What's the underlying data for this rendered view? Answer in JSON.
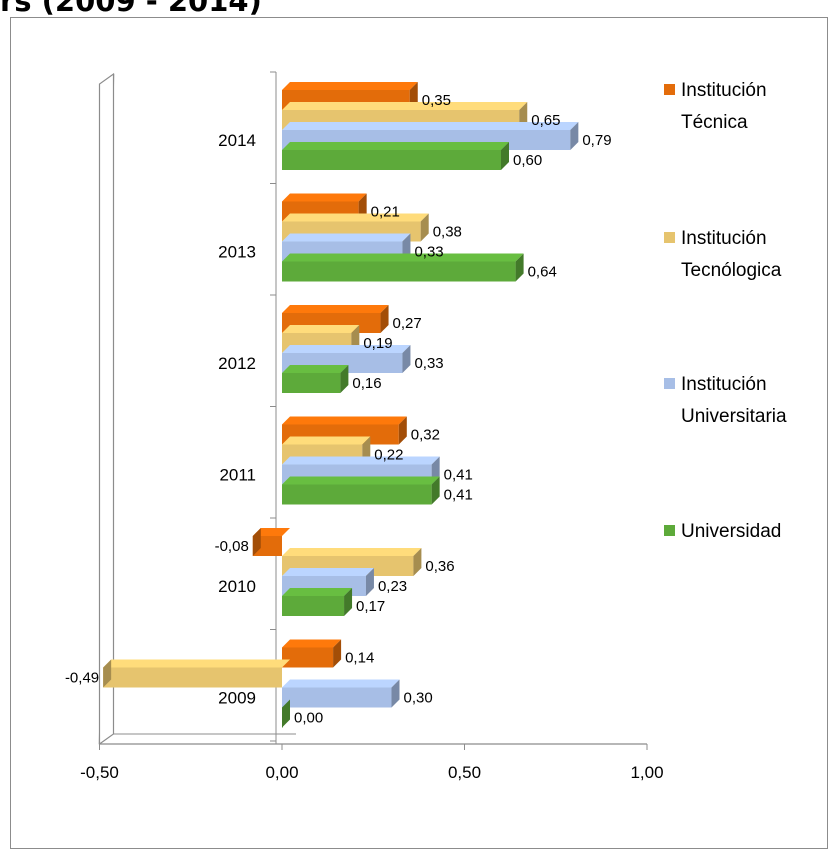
{
  "title_fragment": "rs (2009 - 2014)",
  "colors": {
    "institucion_tecnica": "#E36C0A",
    "institucion_tecnologica": "#E6C46E",
    "institucion_universitaria": "#A7BEE6",
    "universidad": "#5DAA3A"
  },
  "chart_data": {
    "type": "bar",
    "orientation": "horizontal",
    "style": "3d-clustered",
    "title": "",
    "xlabel": "",
    "ylabel": "",
    "xlim": [
      -0.5,
      1.0
    ],
    "x_ticks": [
      "-0,50",
      "0,00",
      "0,50",
      "1,00"
    ],
    "x_tick_values": [
      -0.5,
      0,
      0.5,
      1.0
    ],
    "categories": [
      "2014",
      "2013",
      "2012",
      "2011",
      "2010",
      "2009"
    ],
    "series": [
      {
        "name": "Institución Técnica",
        "values": [
          0.35,
          0.21,
          0.27,
          0.32,
          -0.08,
          0.14
        ],
        "labels": [
          "0,35",
          "0,21",
          "0,27",
          "0,32",
          "-0,08",
          "0,14"
        ]
      },
      {
        "name": "Institución Tecnológica",
        "values": [
          0.65,
          0.38,
          0.19,
          0.22,
          0.36,
          -0.49
        ],
        "labels": [
          "0,65",
          "0,38",
          "0,19",
          "0,22",
          "0,36",
          "-0,49"
        ]
      },
      {
        "name": "Institución Universitaria",
        "values": [
          0.79,
          0.33,
          0.33,
          0.41,
          0.23,
          0.3
        ],
        "labels": [
          "0,79",
          "0,33",
          "0,33",
          "0,41",
          "0,23",
          "0,30"
        ]
      },
      {
        "name": "Universidad",
        "values": [
          0.6,
          0.64,
          0.16,
          0.41,
          0.17,
          0.0
        ],
        "labels": [
          "0,60",
          "0,64",
          "0,16",
          "0,41",
          "0,17",
          "0,00"
        ]
      }
    ],
    "legend": {
      "position": "right",
      "entries": [
        {
          "line1": "Institución",
          "line2": "Técnica"
        },
        {
          "line1": "Institución",
          "line2": "Tecnólogica"
        },
        {
          "line1": "Institución",
          "line2": "Universitaria"
        },
        {
          "line1": "Universidad",
          "line2": ""
        }
      ]
    },
    "grid": false
  }
}
